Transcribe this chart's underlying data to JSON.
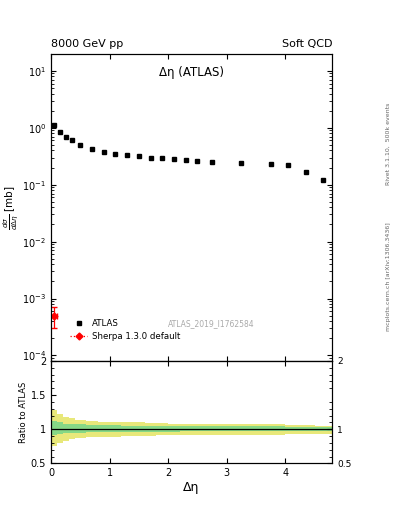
{
  "title_left": "8000 GeV pp",
  "title_right": "Soft QCD",
  "plot_title": "Δη (ATLAS)",
  "xlabel": "Δη",
  "right_label": "Rivet 3.1.10,  500k events",
  "arxiv_label": "mcplots.cern.ch [arXiv:1306.3436]",
  "atlas_id": "ATLAS_2019_I1762584",
  "atlas_data_x": [
    0.05,
    0.15,
    0.25,
    0.35,
    0.5,
    0.7,
    0.9,
    1.1,
    1.3,
    1.5,
    1.7,
    1.9,
    2.1,
    2.3,
    2.5,
    2.75,
    3.25,
    3.75,
    4.05,
    4.35,
    4.65
  ],
  "atlas_data_y": [
    1.1,
    0.85,
    0.7,
    0.6,
    0.5,
    0.42,
    0.38,
    0.35,
    0.33,
    0.32,
    0.3,
    0.29,
    0.28,
    0.27,
    0.265,
    0.255,
    0.245,
    0.235,
    0.22,
    0.165,
    0.12
  ],
  "sherpa_x": [
    0.05
  ],
  "sherpa_y": [
    0.0005
  ],
  "sherpa_xerr": [
    0.05
  ],
  "sherpa_yerr_lo": [
    0.0002
  ],
  "sherpa_yerr_hi": [
    0.0002
  ],
  "bin_edges": [
    0.0,
    0.1,
    0.2,
    0.3,
    0.4,
    0.6,
    0.8,
    1.0,
    1.2,
    1.4,
    1.6,
    1.8,
    2.0,
    2.2,
    2.4,
    2.6,
    3.0,
    3.5,
    4.0,
    4.2,
    4.5,
    4.8
  ],
  "ratio_green_lo": [
    0.92,
    0.93,
    0.94,
    0.95,
    0.95,
    0.96,
    0.96,
    0.96,
    0.96,
    0.965,
    0.965,
    0.965,
    0.965,
    0.97,
    0.97,
    0.97,
    0.97,
    0.97,
    0.975,
    0.975,
    0.98
  ],
  "ratio_green_hi": [
    1.12,
    1.1,
    1.08,
    1.07,
    1.07,
    1.06,
    1.055,
    1.055,
    1.05,
    1.05,
    1.05,
    1.05,
    1.045,
    1.045,
    1.04,
    1.04,
    1.04,
    1.04,
    1.035,
    1.035,
    1.03
  ],
  "ratio_yellow_lo": [
    0.75,
    0.8,
    0.83,
    0.86,
    0.87,
    0.88,
    0.89,
    0.89,
    0.9,
    0.9,
    0.9,
    0.91,
    0.91,
    0.91,
    0.91,
    0.92,
    0.92,
    0.92,
    0.93,
    0.93,
    0.93
  ],
  "ratio_yellow_hi": [
    1.28,
    1.22,
    1.18,
    1.16,
    1.14,
    1.12,
    1.11,
    1.11,
    1.1,
    1.1,
    1.09,
    1.09,
    1.08,
    1.08,
    1.07,
    1.07,
    1.07,
    1.07,
    1.06,
    1.06,
    1.05
  ],
  "ylim_main": [
    8e-05,
    20
  ],
  "ylim_ratio": [
    0.5,
    2.0
  ],
  "xlim": [
    0.0,
    4.8
  ],
  "green_color": "#86d886",
  "yellow_color": "#e8e87a",
  "sherpa_color": "red"
}
